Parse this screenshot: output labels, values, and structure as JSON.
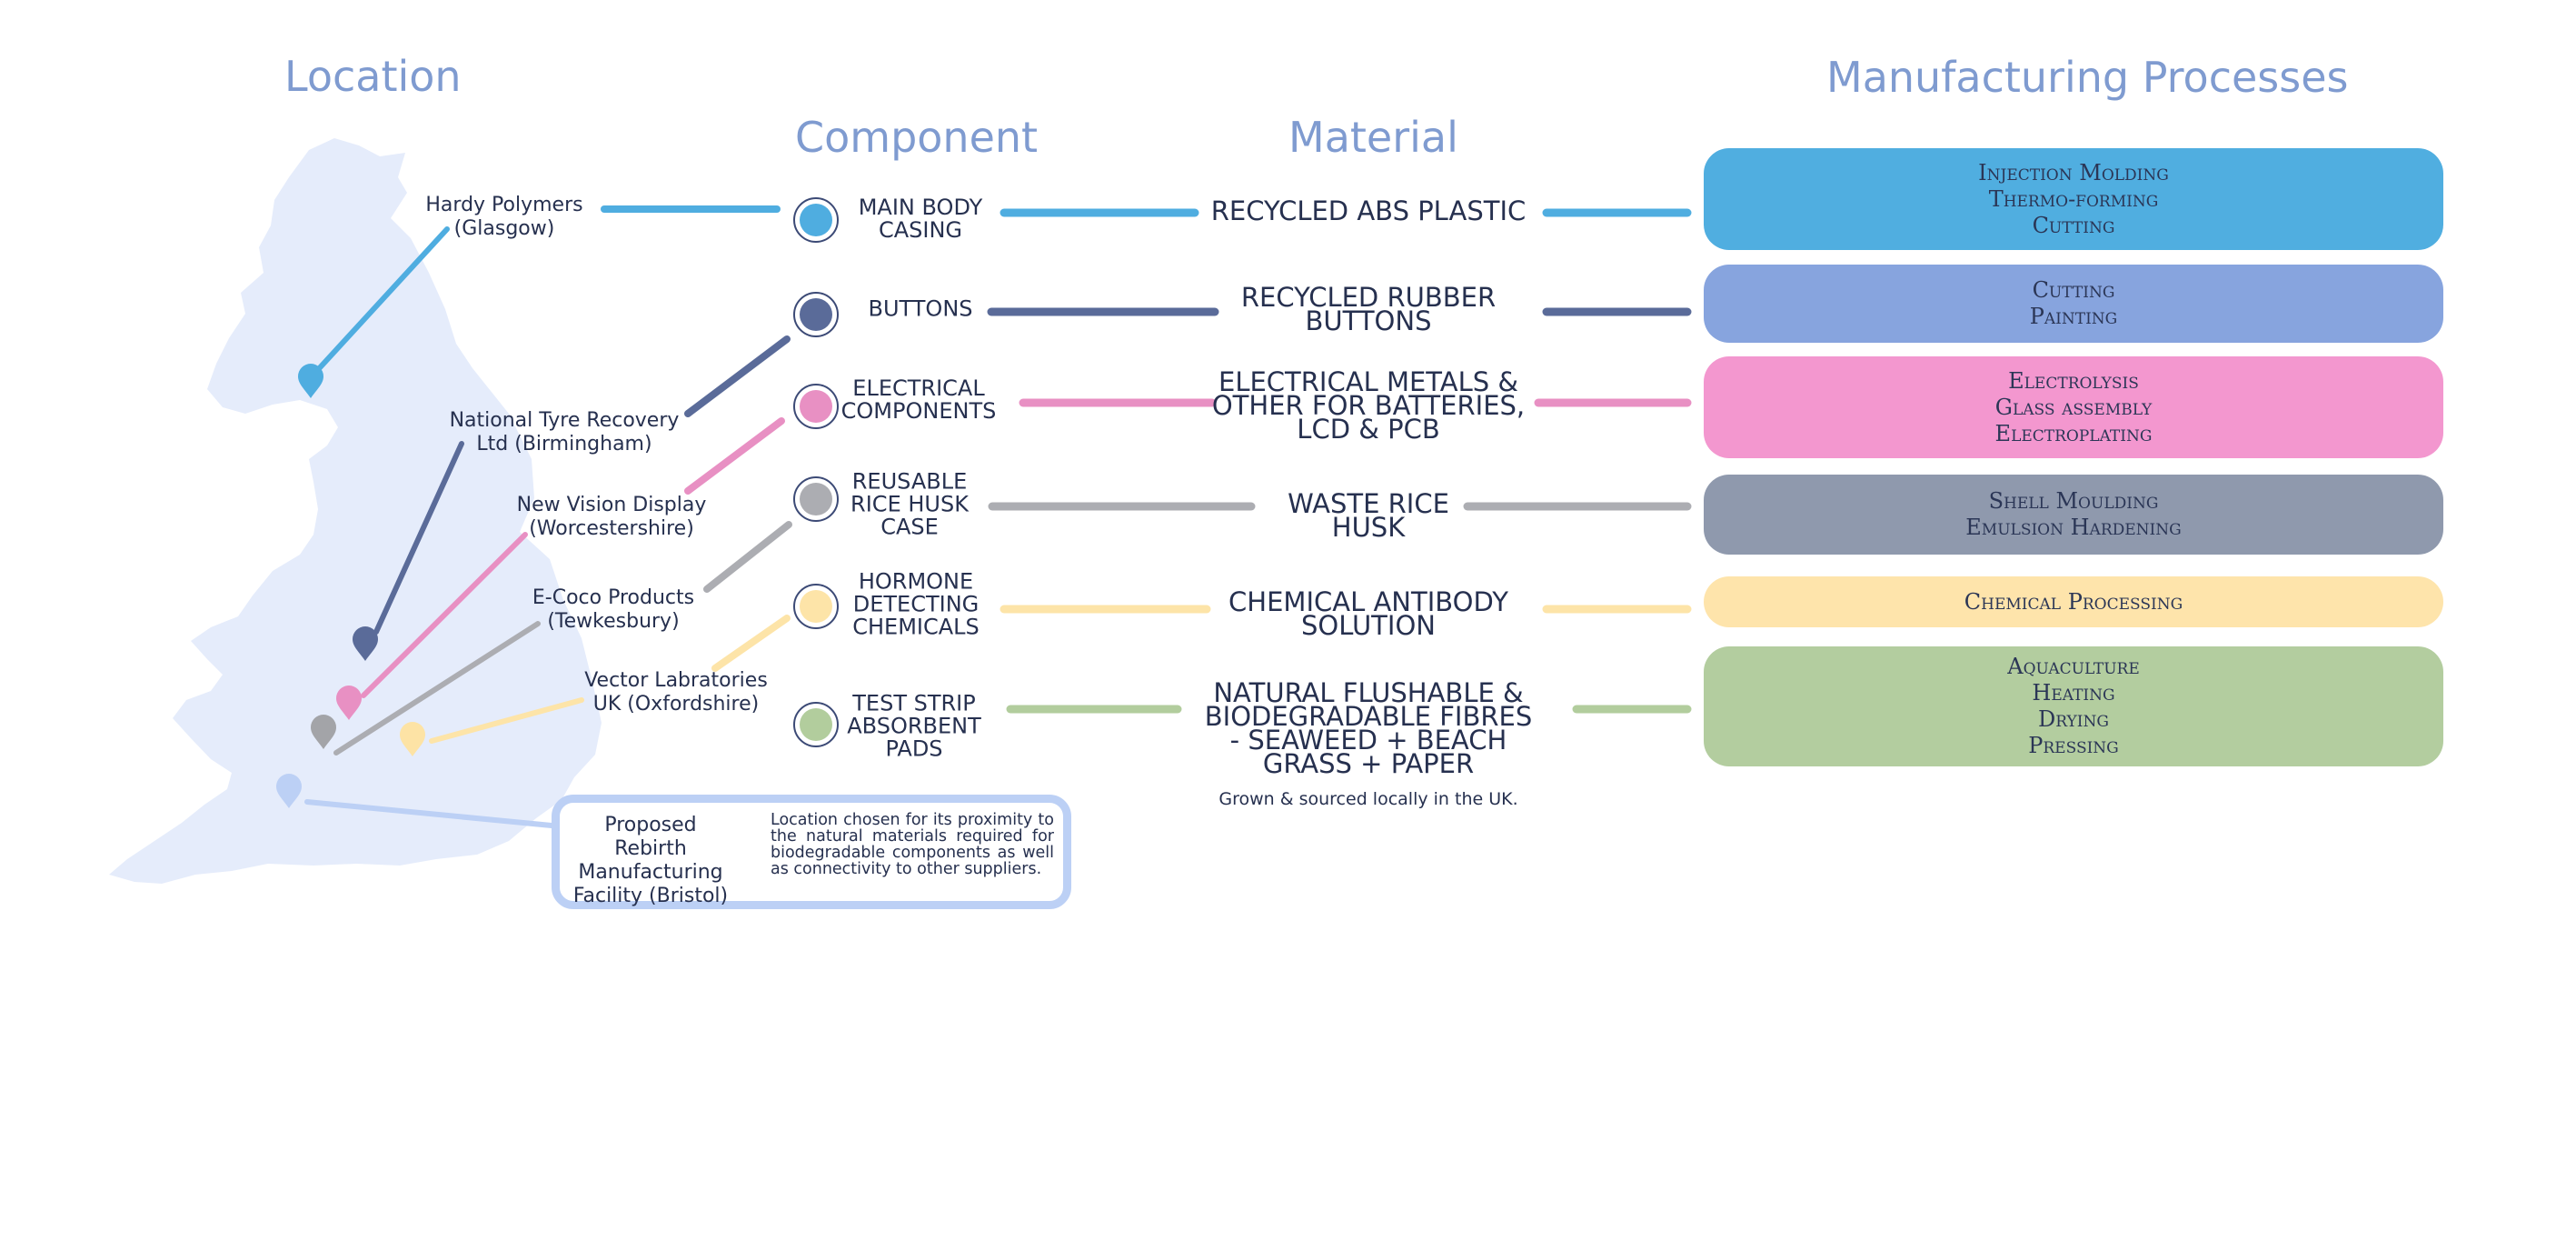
{
  "headers": {
    "location": "Location",
    "component": "Component",
    "material": "Material",
    "processes": "Manufacturing Processes"
  },
  "colors": {
    "map": "#e5ecfb",
    "blue": "#4fade0",
    "navy": "#5a6b99",
    "pink": "#e890c3",
    "grey": "#acadb2",
    "yellow": "#fde4a8",
    "green": "#b2cd9d",
    "periwinkle": "#bcd0f5"
  },
  "rows": [
    {
      "supplier": "Hardy Polymers\n(Glasgow)",
      "component": "MAIN BODY\nCASING",
      "material": "RECYCLED ABS PLASTIC",
      "processes": [
        "Injection Molding",
        "Thermo-forming",
        "Cutting"
      ],
      "line_color": "#4fade0",
      "pin_color": "#4fade0",
      "box_color": "#50aee0"
    },
    {
      "supplier": "National Tyre Recovery\nLtd (Birmingham)",
      "component": "BUTTONS",
      "material": "RECYCLED RUBBER\nBUTTONS",
      "processes": [
        "Cutting",
        "Painting"
      ],
      "line_color": "#5a6b99",
      "pin_color": "#5a6b99",
      "box_color": "#87a4de"
    },
    {
      "supplier": "New Vision Display\n(Worcestershire)",
      "component": "ELECTRICAL\nCOMPONENTS",
      "material": "ELECTRICAL METALS &\nOTHER FOR BATTERIES,\nLCD & PCB",
      "processes": [
        "Electrolysis",
        "Glass assembly",
        "Electroplating"
      ],
      "line_color": "#e890c3",
      "pin_color": "#e890c3",
      "box_color": "#f397cf"
    },
    {
      "supplier": "E-Coco Products\n(Tewkesbury)",
      "component": "REUSABLE\nRICE HUSK\nCASE",
      "material": "WASTE RICE\nHUSK",
      "processes": [
        "Shell Moulding",
        "Emulsion Hardening"
      ],
      "line_color": "#acadb2",
      "pin_color": "#a3a4a8",
      "box_color": "#8f99ad"
    },
    {
      "supplier": "Vector Labratories\nUK (Oxfordshire)",
      "component": "HORMONE\nDETECTING\nCHEMICALS",
      "material": "CHEMICAL ANTIBODY\nSOLUTION",
      "processes": [
        "Chemical Processing"
      ],
      "line_color": "#fde4a8",
      "pin_color": "#fde3a5",
      "box_color": "#fee4ab"
    },
    {
      "supplier": "",
      "component": "TEST STRIP\nABSORBENT\nPADS",
      "material": "NATURAL FLUSHABLE &\nBIODEGRADABLE FIBRES\n- SEAWEED + BEACH\nGRASS + PAPER",
      "processes": [
        "Aquaculture",
        "Heating",
        "Drying",
        "Pressing"
      ],
      "line_color": "#b2cd9d",
      "pin_color": "#b2cd9d",
      "box_color": "#b3cd9f"
    }
  ],
  "material_note": "Grown & sourced locally in the UK.",
  "facility": {
    "name": "Proposed Rebirth\nManufacturing\nFacility (Bristol)",
    "description": "Location chosen for its proximity to the natural materials required for biodegradable components as well as connectivity to other suppliers."
  }
}
